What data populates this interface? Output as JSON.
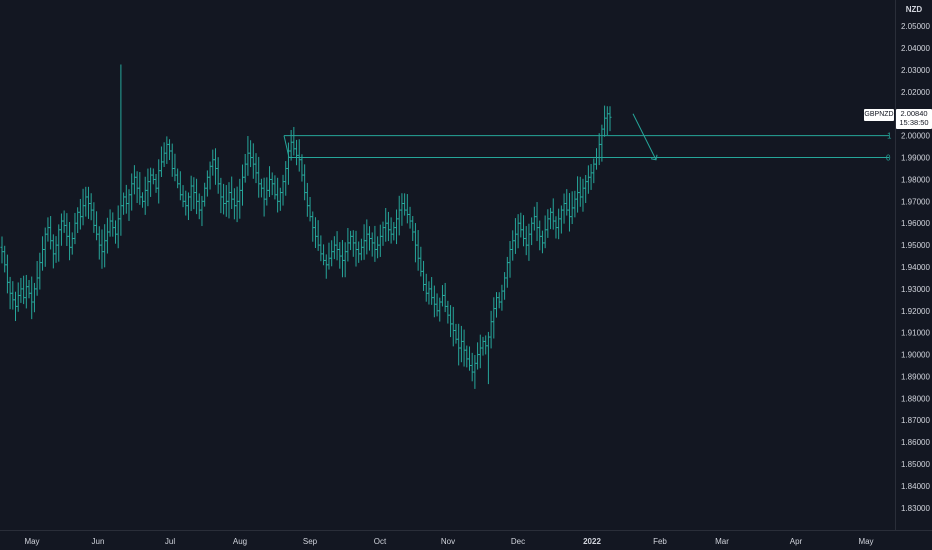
{
  "chart_data": {
    "type": "bar",
    "symbol": "GBPNZD",
    "currency": "NZD",
    "last_price": "2.00840",
    "countdown": "15:38:50",
    "ylim": [
      1.8235,
      2.0565
    ],
    "y_ticks": [
      "2.05000",
      "2.04000",
      "2.03000",
      "2.02000",
      "2.01000",
      "2.00000",
      "1.99000",
      "1.98000",
      "1.97000",
      "1.96000",
      "1.95000",
      "1.94000",
      "1.93000",
      "1.92000",
      "1.91000",
      "1.90000",
      "1.89000",
      "1.88000",
      "1.87000",
      "1.86000",
      "1.85000",
      "1.84000",
      "1.83000"
    ],
    "x_ticks": [
      {
        "label": "May",
        "bold": false
      },
      {
        "label": "Jun",
        "bold": false
      },
      {
        "label": "Jul",
        "bold": false
      },
      {
        "label": "Aug",
        "bold": false
      },
      {
        "label": "Sep",
        "bold": false
      },
      {
        "label": "Oct",
        "bold": false
      },
      {
        "label": "Nov",
        "bold": false
      },
      {
        "label": "Dec",
        "bold": false
      },
      {
        "label": "2022",
        "bold": true
      },
      {
        "label": "Feb",
        "bold": false
      },
      {
        "label": "Mar",
        "bold": false
      },
      {
        "label": "Apr",
        "bold": false
      },
      {
        "label": "May",
        "bold": false
      }
    ],
    "bar_color": "#26a69a",
    "closes": [
      1.947,
      1.941,
      1.933,
      1.928,
      1.925,
      1.922,
      1.927,
      1.93,
      1.926,
      1.931,
      1.928,
      1.924,
      1.93,
      1.935,
      1.942,
      1.948,
      1.955,
      1.958,
      1.952,
      1.946,
      1.95,
      1.957,
      1.961,
      1.959,
      1.954,
      1.949,
      1.953,
      1.96,
      1.965,
      1.963,
      1.968,
      1.972,
      1.969,
      1.966,
      1.959,
      1.955,
      1.95,
      1.947,
      1.952,
      1.956,
      1.961,
      1.958,
      1.955,
      1.962,
      1.968,
      1.972,
      1.969,
      1.973,
      1.978,
      1.981,
      1.976,
      1.972,
      1.97,
      1.975,
      1.979,
      1.982,
      1.98,
      1.976,
      1.984,
      1.988,
      1.992,
      1.996,
      1.993,
      1.985,
      1.982,
      1.978,
      1.973,
      1.97,
      1.968,
      1.972,
      1.977,
      1.974,
      1.97,
      1.966,
      1.97,
      1.976,
      1.981,
      1.986,
      1.989,
      1.985,
      1.978,
      1.972,
      1.969,
      1.97,
      1.974,
      1.971,
      1.968,
      1.97,
      1.975,
      1.981,
      1.987,
      1.992,
      1.99,
      1.987,
      1.983,
      1.978,
      1.976,
      1.971,
      1.975,
      1.98,
      1.978,
      1.973,
      1.97,
      1.974,
      1.979,
      1.985,
      1.993,
      1.997,
      1.994,
      1.991,
      1.989,
      1.982,
      1.974,
      1.968,
      1.963,
      1.958,
      1.954,
      1.95,
      1.946,
      1.943,
      1.941,
      1.944,
      1.947,
      1.95,
      1.948,
      1.945,
      1.943,
      1.947,
      1.951,
      1.954,
      1.951,
      1.948,
      1.946,
      1.949,
      1.952,
      1.955,
      1.953,
      1.951,
      1.948,
      1.95,
      1.954,
      1.958,
      1.96,
      1.957,
      1.955,
      1.958,
      1.962,
      1.966,
      1.969,
      1.966,
      1.964,
      1.961,
      1.956,
      1.95,
      1.944,
      1.938,
      1.932,
      1.928,
      1.93,
      1.926,
      1.923,
      1.92,
      1.924,
      1.927,
      1.922,
      1.918,
      1.914,
      1.911,
      1.907,
      1.903,
      1.906,
      1.902,
      1.898,
      1.895,
      1.892,
      1.896,
      1.9,
      1.903,
      1.906,
      1.904,
      1.908,
      1.915,
      1.921,
      1.926,
      1.924,
      1.929,
      1.935,
      1.942,
      1.948,
      1.952,
      1.955,
      1.96,
      1.957,
      1.953,
      1.95,
      1.955,
      1.96,
      1.963,
      1.958,
      1.954,
      1.951,
      1.957,
      1.962,
      1.965,
      1.961,
      1.958,
      1.962,
      1.966,
      1.969,
      1.966,
      1.963,
      1.967,
      1.971,
      1.974,
      1.972,
      1.976,
      1.979,
      1.981,
      1.983,
      1.987,
      1.99,
      1.996,
      2.003,
      2.008,
      2.01,
      2.0084
    ],
    "extremes": [
      {
        "index": 44,
        "high": 2.0325
      },
      {
        "index": 180,
        "low": 1.8865
      }
    ],
    "annotations": {
      "resistance_upper": 2.0,
      "resistance_lower": 1.99,
      "upper_label": "1",
      "lower_label": "0",
      "arrow_from": [
        2.01,
        "2022-01-20"
      ],
      "arrow_to": [
        1.989,
        "2022-02-05"
      ]
    }
  }
}
